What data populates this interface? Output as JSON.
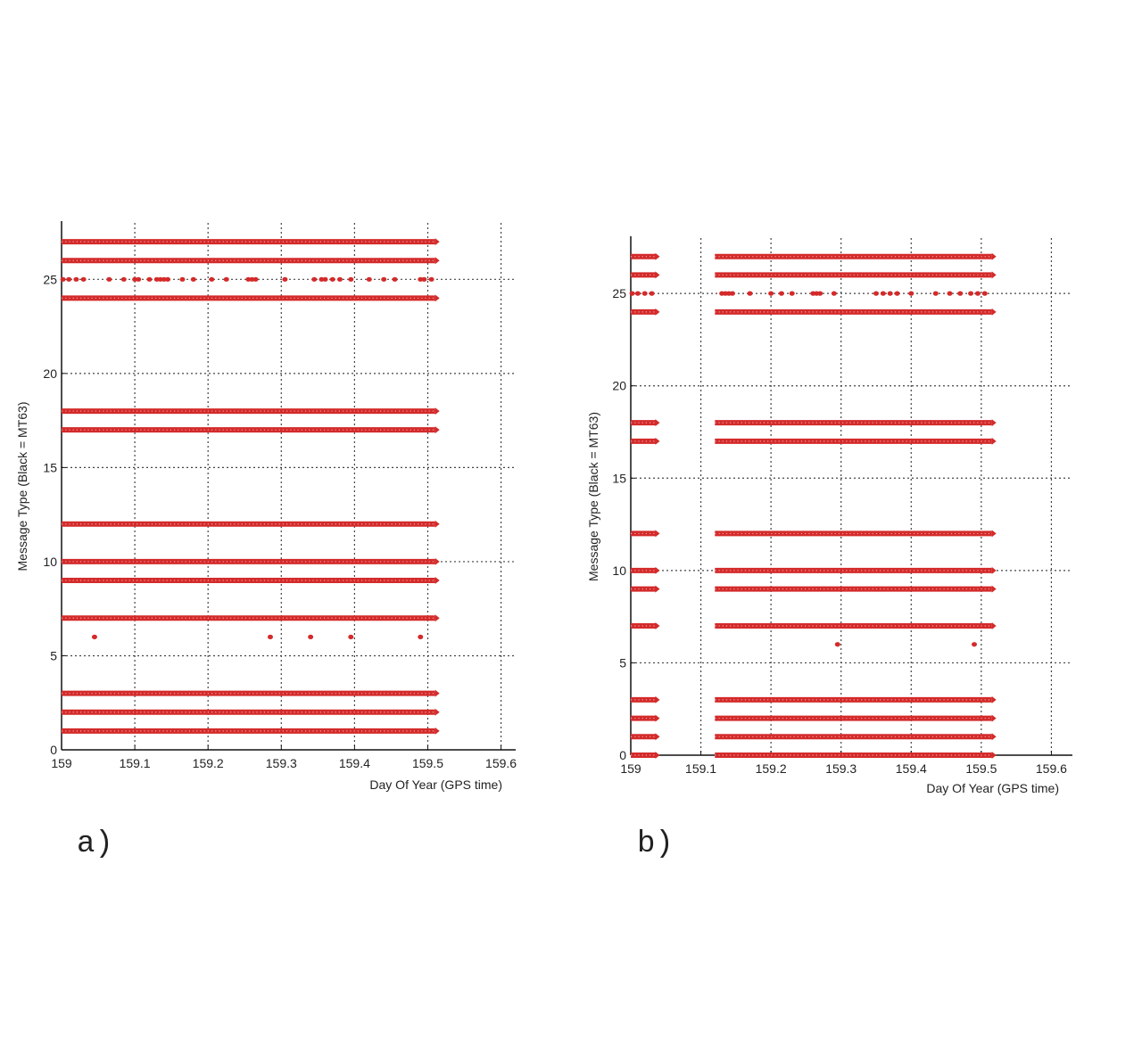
{
  "colors": {
    "series": "#d42a2a",
    "grid": "#444444",
    "axis": "#111111"
  },
  "chart_data": [
    {
      "type": "scatter",
      "panel_label": "a)",
      "xlabel": "Day Of Year (GPS time)",
      "ylabel": "Message Type (Black = MT63)",
      "xlim": [
        159,
        159.62
      ],
      "ylim": [
        0,
        28
      ],
      "xticks": [
        159,
        159.1,
        159.2,
        159.3,
        159.4,
        159.5,
        159.6
      ],
      "xtick_labels": [
        "159",
        "159.1",
        "159.2",
        "159.3",
        "159.4",
        "159.5",
        "159.6"
      ],
      "yticks": [
        0,
        5,
        10,
        15,
        20,
        25
      ],
      "ytick_labels": [
        "0",
        "5",
        "10",
        "15",
        "20",
        "25"
      ],
      "grid": true,
      "series": [
        {
          "continuous": [
            {
              "y": 1,
              "x0": 159.0,
              "x1": 159.51
            },
            {
              "y": 2,
              "x0": 159.0,
              "x1": 159.51
            },
            {
              "y": 3,
              "x0": 159.0,
              "x1": 159.51
            },
            {
              "y": 7,
              "x0": 159.0,
              "x1": 159.51
            },
            {
              "y": 9,
              "x0": 159.0,
              "x1": 159.51
            },
            {
              "y": 10,
              "x0": 159.0,
              "x1": 159.51
            },
            {
              "y": 12,
              "x0": 159.0,
              "x1": 159.51
            },
            {
              "y": 17,
              "x0": 159.0,
              "x1": 159.51
            },
            {
              "y": 18,
              "x0": 159.0,
              "x1": 159.51
            },
            {
              "y": 24,
              "x0": 159.0,
              "x1": 159.51
            },
            {
              "y": 26,
              "x0": 159.0,
              "x1": 159.51
            },
            {
              "y": 27,
              "x0": 159.0,
              "x1": 159.51
            }
          ],
          "points": [
            {
              "x": 159.002,
              "y": 25
            },
            {
              "x": 159.01,
              "y": 25
            },
            {
              "x": 159.02,
              "y": 25
            },
            {
              "x": 159.03,
              "y": 25
            },
            {
              "x": 159.065,
              "y": 25
            },
            {
              "x": 159.085,
              "y": 25
            },
            {
              "x": 159.1,
              "y": 25
            },
            {
              "x": 159.105,
              "y": 25
            },
            {
              "x": 159.12,
              "y": 25
            },
            {
              "x": 159.13,
              "y": 25
            },
            {
              "x": 159.135,
              "y": 25
            },
            {
              "x": 159.14,
              "y": 25
            },
            {
              "x": 159.145,
              "y": 25
            },
            {
              "x": 159.165,
              "y": 25
            },
            {
              "x": 159.18,
              "y": 25
            },
            {
              "x": 159.205,
              "y": 25
            },
            {
              "x": 159.225,
              "y": 25
            },
            {
              "x": 159.255,
              "y": 25
            },
            {
              "x": 159.26,
              "y": 25
            },
            {
              "x": 159.265,
              "y": 25
            },
            {
              "x": 159.305,
              "y": 25
            },
            {
              "x": 159.345,
              "y": 25
            },
            {
              "x": 159.355,
              "y": 25
            },
            {
              "x": 159.36,
              "y": 25
            },
            {
              "x": 159.37,
              "y": 25
            },
            {
              "x": 159.38,
              "y": 25
            },
            {
              "x": 159.395,
              "y": 25
            },
            {
              "x": 159.42,
              "y": 25
            },
            {
              "x": 159.44,
              "y": 25
            },
            {
              "x": 159.455,
              "y": 25
            },
            {
              "x": 159.49,
              "y": 25
            },
            {
              "x": 159.495,
              "y": 25
            },
            {
              "x": 159.505,
              "y": 25
            },
            {
              "x": 159.045,
              "y": 6
            },
            {
              "x": 159.285,
              "y": 6
            },
            {
              "x": 159.34,
              "y": 6
            },
            {
              "x": 159.395,
              "y": 6
            },
            {
              "x": 159.49,
              "y": 6
            }
          ]
        }
      ]
    },
    {
      "type": "scatter",
      "panel_label": "b)",
      "xlabel": "Day Of Year (GPS time)",
      "ylabel": "Message Type (Black = MT63)",
      "xlim": [
        159,
        159.63
      ],
      "ylim": [
        0,
        28
      ],
      "xticks": [
        159,
        159.1,
        159.2,
        159.3,
        159.4,
        159.5,
        159.6
      ],
      "xtick_labels": [
        "159",
        "159.1",
        "159.2",
        "159.3",
        "159.4",
        "159.5",
        "159.6"
      ],
      "yticks": [
        0,
        5,
        10,
        15,
        20,
        25
      ],
      "ytick_labels": [
        "0",
        "5",
        "10",
        "15",
        "20",
        "25"
      ],
      "grid": true,
      "series": [
        {
          "continuous": [
            {
              "y": 0,
              "x0": 159.0,
              "x1": 159.035
            },
            {
              "y": 0,
              "x0": 159.12,
              "x1": 159.515
            },
            {
              "y": 1,
              "x0": 159.0,
              "x1": 159.035
            },
            {
              "y": 1,
              "x0": 159.12,
              "x1": 159.515
            },
            {
              "y": 2,
              "x0": 159.0,
              "x1": 159.035
            },
            {
              "y": 2,
              "x0": 159.12,
              "x1": 159.515
            },
            {
              "y": 3,
              "x0": 159.0,
              "x1": 159.035
            },
            {
              "y": 3,
              "x0": 159.12,
              "x1": 159.515
            },
            {
              "y": 7,
              "x0": 159.0,
              "x1": 159.035
            },
            {
              "y": 7,
              "x0": 159.12,
              "x1": 159.515
            },
            {
              "y": 9,
              "x0": 159.0,
              "x1": 159.035
            },
            {
              "y": 9,
              "x0": 159.12,
              "x1": 159.515
            },
            {
              "y": 10,
              "x0": 159.0,
              "x1": 159.035
            },
            {
              "y": 10,
              "x0": 159.12,
              "x1": 159.515
            },
            {
              "y": 12,
              "x0": 159.0,
              "x1": 159.035
            },
            {
              "y": 12,
              "x0": 159.12,
              "x1": 159.515
            },
            {
              "y": 17,
              "x0": 159.0,
              "x1": 159.035
            },
            {
              "y": 17,
              "x0": 159.12,
              "x1": 159.515
            },
            {
              "y": 18,
              "x0": 159.0,
              "x1": 159.035
            },
            {
              "y": 18,
              "x0": 159.12,
              "x1": 159.515
            },
            {
              "y": 24,
              "x0": 159.0,
              "x1": 159.035
            },
            {
              "y": 24,
              "x0": 159.12,
              "x1": 159.515
            },
            {
              "y": 26,
              "x0": 159.0,
              "x1": 159.035
            },
            {
              "y": 26,
              "x0": 159.12,
              "x1": 159.515
            },
            {
              "y": 27,
              "x0": 159.0,
              "x1": 159.035
            },
            {
              "y": 27,
              "x0": 159.12,
              "x1": 159.515
            }
          ],
          "points": [
            {
              "x": 159.002,
              "y": 25
            },
            {
              "x": 159.01,
              "y": 25
            },
            {
              "x": 159.02,
              "y": 25
            },
            {
              "x": 159.03,
              "y": 25
            },
            {
              "x": 159.13,
              "y": 25
            },
            {
              "x": 159.135,
              "y": 25
            },
            {
              "x": 159.14,
              "y": 25
            },
            {
              "x": 159.145,
              "y": 25
            },
            {
              "x": 159.17,
              "y": 25
            },
            {
              "x": 159.2,
              "y": 25
            },
            {
              "x": 159.215,
              "y": 25
            },
            {
              "x": 159.23,
              "y": 25
            },
            {
              "x": 159.26,
              "y": 25
            },
            {
              "x": 159.265,
              "y": 25
            },
            {
              "x": 159.27,
              "y": 25
            },
            {
              "x": 159.29,
              "y": 25
            },
            {
              "x": 159.35,
              "y": 25
            },
            {
              "x": 159.36,
              "y": 25
            },
            {
              "x": 159.37,
              "y": 25
            },
            {
              "x": 159.38,
              "y": 25
            },
            {
              "x": 159.4,
              "y": 25
            },
            {
              "x": 159.435,
              "y": 25
            },
            {
              "x": 159.455,
              "y": 25
            },
            {
              "x": 159.47,
              "y": 25
            },
            {
              "x": 159.485,
              "y": 25
            },
            {
              "x": 159.495,
              "y": 25
            },
            {
              "x": 159.505,
              "y": 25
            },
            {
              "x": 159.295,
              "y": 6
            },
            {
              "x": 159.49,
              "y": 6
            }
          ]
        }
      ]
    }
  ]
}
